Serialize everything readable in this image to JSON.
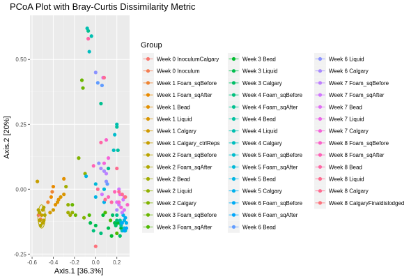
{
  "chart_data": {
    "type": "scatter",
    "title": "PCoA Plot with Bray-Curtis Dissimilarity Metric",
    "xlabel": "Axis.1   [36.3%]",
    "ylabel": "Axis.2   [20%]",
    "xlim": [
      -0.62,
      0.32
    ],
    "ylim": [
      -0.26,
      0.67
    ],
    "xticks": [
      -0.6,
      -0.4,
      -0.2,
      0.0,
      0.2
    ],
    "xtick_labels": [
      "-0.6",
      "-0.4",
      "-0.2",
      "0.0",
      "0.2"
    ],
    "yticks": [
      -0.25,
      0.0,
      0.25,
      0.5
    ],
    "ytick_labels": [
      "-0.25",
      "0.00",
      "0.25",
      "0.50"
    ],
    "panel_background": "#ebebeb",
    "grid": true,
    "legend": {
      "title": "Group",
      "placement": "right",
      "columns": 3
    },
    "ellipse": {
      "cx": -0.51,
      "cy": -0.105,
      "rx": 0.035,
      "ry": 0.045,
      "color": "#b8a400"
    },
    "series": [
      {
        "name": "Week 0 InoculumCalgary",
        "color": "#F8766D",
        "points": [
          [
            -0.54,
            -0.1
          ]
        ]
      },
      {
        "name": "Week 0 Inoculum",
        "color": "#F47E52",
        "points": [
          [
            -0.52,
            -0.115
          ]
        ]
      },
      {
        "name": "Week 1 Foam_sqBefore",
        "color": "#EF8432",
        "points": [
          [
            -0.45,
            -0.05
          ],
          [
            -0.41,
            -0.01
          ]
        ]
      },
      {
        "name": "Week 1 Foam_sqAfter",
        "color": "#E98A00",
        "points": [
          [
            -0.4,
            0.01
          ],
          [
            -0.42,
            -0.03
          ]
        ]
      },
      {
        "name": "Week 1 Bead",
        "color": "#E29000",
        "points": [
          [
            -0.38,
            -0.06
          ],
          [
            -0.35,
            -0.04
          ],
          [
            -0.3,
            0.04
          ]
        ]
      },
      {
        "name": "Week 1 Liquid",
        "color": "#D99500",
        "points": [
          [
            -0.36,
            -0.05
          ],
          [
            -0.33,
            -0.03
          ],
          [
            -0.3,
            -0.02
          ]
        ]
      },
      {
        "name": "Week 1 Calgary",
        "color": "#D09A00",
        "points": [
          [
            -0.43,
            -0.09
          ],
          [
            -0.4,
            -0.08
          ]
        ]
      },
      {
        "name": "Week 1 Calgary_ctrlReps",
        "color": "#C69F00",
        "points": [
          [
            -0.55,
            0.03
          ],
          [
            -0.51,
            -0.1
          ],
          [
            -0.525,
            -0.12
          ]
        ]
      },
      {
        "name": "Week 2 Foam_sqBefore",
        "color": "#BBA400",
        "points": [
          [
            -0.53,
            -0.09
          ],
          [
            -0.5,
            -0.08
          ],
          [
            -0.49,
            -0.12
          ],
          [
            -0.53,
            -0.12
          ],
          [
            -0.5,
            -0.13
          ]
        ]
      },
      {
        "name": "Week 2 Foam_sqAfter",
        "color": "#AFA800",
        "points": [
          [
            -0.49,
            -0.07
          ],
          [
            -0.54,
            -0.08
          ],
          [
            -0.52,
            -0.14
          ],
          [
            -0.48,
            -0.1
          ]
        ]
      },
      {
        "name": "Week 2 Bead",
        "color": "#A1AC00",
        "points": [
          [
            -0.28,
            0.01
          ],
          [
            -0.26,
            -0.09
          ],
          [
            -0.24,
            -0.1
          ]
        ]
      },
      {
        "name": "Week 2 Liquid",
        "color": "#92B000",
        "points": [
          [
            -0.26,
            -0.06
          ],
          [
            -0.22,
            -0.09
          ],
          [
            -0.1,
            0.06
          ]
        ]
      },
      {
        "name": "Week 2 Calgary",
        "color": "#81B300",
        "points": [
          [
            -0.16,
            0.12
          ],
          [
            -0.11,
            -0.11
          ]
        ]
      },
      {
        "name": "Week 3 Foam_sqBefore",
        "color": "#6BB600",
        "points": [
          [
            -0.22,
            -0.06
          ],
          [
            -0.19,
            -0.1
          ],
          [
            -0.12,
            0.39
          ],
          [
            -0.13,
            0.42
          ]
        ]
      },
      {
        "name": "Week 3 Foam_sqAfter",
        "color": "#4FB900",
        "points": [
          [
            -0.06,
            -0.1
          ],
          [
            0.09,
            -0.09
          ],
          [
            0.14,
            -0.12
          ],
          [
            0.2,
            -0.17
          ],
          [
            0.23,
            -0.13
          ]
        ]
      },
      {
        "name": "Week 3 Bead",
        "color": "#00BB2F",
        "points": [
          [
            0.07,
            -0.1
          ],
          [
            0.15,
            -0.18
          ],
          [
            0.21,
            -0.13
          ],
          [
            0.24,
            -0.15
          ]
        ]
      },
      {
        "name": "Week 3 Liquid",
        "color": "#00BD4F",
        "points": [
          [
            -0.05,
            -0.13
          ],
          [
            0.0,
            -0.14
          ],
          [
            0.12,
            -0.15
          ],
          [
            0.18,
            -0.13
          ]
        ]
      },
      {
        "name": "Week 3 Calgary",
        "color": "#00BF67",
        "points": [
          [
            0.16,
            -0.1
          ],
          [
            0.19,
            -0.14
          ],
          [
            0.23,
            -0.18
          ]
        ]
      },
      {
        "name": "Week 4 Foam_sqBefore",
        "color": "#00C07C",
        "points": [
          [
            -0.02,
            -0.16
          ],
          [
            0.05,
            -0.17
          ],
          [
            0.2,
            -0.12
          ]
        ]
      },
      {
        "name": "Week 4 Foam_sqAfter",
        "color": "#00C08F",
        "points": [
          [
            -0.07,
            0.61
          ],
          [
            0.05,
            0.33
          ],
          [
            0.12,
            0.08
          ],
          [
            0.2,
            -0.1
          ]
        ]
      },
      {
        "name": "Week 4 Bead",
        "color": "#00C1A0",
        "points": [
          [
            0.2,
            0.24
          ],
          [
            0.21,
            0.15
          ],
          [
            0.23,
            -0.12
          ]
        ]
      },
      {
        "name": "Week 4 Liquid",
        "color": "#00BFB0",
        "points": [
          [
            -0.08,
            0.62
          ],
          [
            -0.04,
            0.59
          ],
          [
            0.2,
            0.25
          ],
          [
            0.24,
            -0.14
          ]
        ]
      },
      {
        "name": "Week 4 Calgary",
        "color": "#00BEBF",
        "points": [
          [
            -0.06,
            0.53
          ],
          [
            0.17,
            0.15
          ],
          [
            0.25,
            -0.16
          ]
        ]
      },
      {
        "name": "Week 5 Foam_sqBefore",
        "color": "#00BCCC",
        "points": [
          [
            0.18,
            0.21
          ],
          [
            0.24,
            -0.13
          ],
          [
            0.28,
            -0.16
          ]
        ]
      },
      {
        "name": "Week 5 Foam_sqAfter",
        "color": "#00B9D8",
        "points": [
          [
            0.0,
            0.02
          ],
          [
            0.08,
            0.0
          ],
          [
            0.27,
            -0.15
          ]
        ]
      },
      {
        "name": "Week 5 Bead",
        "color": "#00B5E3",
        "points": [
          [
            -0.09,
            0.05
          ],
          [
            0.0,
            -0.03
          ],
          [
            0.27,
            -0.12
          ]
        ]
      },
      {
        "name": "Week 5 Calgary",
        "color": "#00B1EC",
        "points": [
          [
            0.08,
            -0.05
          ],
          [
            0.26,
            -0.1
          ],
          [
            0.29,
            -0.13
          ]
        ]
      },
      {
        "name": "Week 6 Foam_sqBefore",
        "color": "#00ACF4",
        "points": [
          [
            0.25,
            -0.13
          ],
          [
            0.28,
            -0.11
          ]
        ]
      },
      {
        "name": "Week 6 Foam_sqAfter",
        "color": "#00A6FB",
        "points": [
          [
            0.27,
            -0.16
          ],
          [
            0.29,
            -0.15
          ]
        ]
      },
      {
        "name": "Week 6 Bead",
        "color": "#619CFF",
        "points": [
          [
            0.02,
            0.41
          ],
          [
            0.06,
            0.4
          ],
          [
            0.11,
            0.02
          ]
        ]
      },
      {
        "name": "Week 6 Liquid",
        "color": "#8B93FF",
        "points": [
          [
            0.0,
            0.45
          ],
          [
            0.03,
            0.1
          ],
          [
            0.1,
            0.03
          ]
        ]
      },
      {
        "name": "Week 6 Calgary",
        "color": "#A98BFE",
        "points": [
          [
            0.05,
            0.08
          ],
          [
            0.08,
            0.07
          ],
          [
            0.2,
            -0.08
          ]
        ]
      },
      {
        "name": "Week 7 Foam_sqBefore",
        "color": "#BF80FF",
        "points": [
          [
            0.1,
            0.06
          ],
          [
            0.22,
            -0.06
          ],
          [
            0.25,
            -0.09
          ]
        ]
      },
      {
        "name": "Week 7 Foam_sqAfter",
        "color": "#D177FF",
        "points": [
          [
            0.06,
            -0.02
          ],
          [
            0.22,
            0.0
          ],
          [
            0.26,
            -0.04
          ]
        ]
      },
      {
        "name": "Week 7 Bead",
        "color": "#E06EF4",
        "points": [
          [
            0.07,
            0.43
          ],
          [
            0.2,
            -0.05
          ],
          [
            0.27,
            -0.08
          ]
        ]
      },
      {
        "name": "Week 7 Liquid",
        "color": "#EC69E8",
        "points": [
          [
            0.23,
            -0.02
          ],
          [
            0.27,
            -0.03
          ]
        ]
      },
      {
        "name": "Week 7 Calgary",
        "color": "#F564D9",
        "points": [
          [
            0.08,
            0.1
          ],
          [
            0.12,
            0.12
          ],
          [
            0.24,
            -0.07
          ]
        ]
      },
      {
        "name": "Week 8 Foam_sqBefore",
        "color": "#FC61C9",
        "points": [
          [
            0.1,
            0.19
          ],
          [
            0.22,
            -0.05
          ],
          [
            0.3,
            -0.06
          ]
        ]
      },
      {
        "name": "Week 8 Foam_sqAfter",
        "color": "#FF62B7",
        "points": [
          [
            -0.02,
            0.09
          ],
          [
            0.12,
            -0.03
          ],
          [
            0.18,
            -0.01
          ]
        ]
      },
      {
        "name": "Week 8 Bead",
        "color": "#FF66A4",
        "points": [
          [
            -0.07,
            0.58
          ],
          [
            0.05,
            0.18
          ],
          [
            0.15,
            -0.05
          ]
        ]
      },
      {
        "name": "Week 8 Liquid",
        "color": "#FF6C91",
        "points": [
          [
            0.08,
            0.43
          ],
          [
            0.2,
            0.08
          ],
          [
            0.22,
            -0.01
          ]
        ]
      },
      {
        "name": "Week 8 Calgary",
        "color": "#FF6C91",
        "points": [
          [
            0.02,
            0.0
          ],
          [
            0.09,
            -0.04
          ],
          [
            0.25,
            -0.02
          ]
        ]
      },
      {
        "name": "Week 8 CalgaryFinaldislodged",
        "color": "#FD737D",
        "points": [
          [
            0.0,
            -0.22
          ],
          [
            0.28,
            -0.03
          ]
        ]
      }
    ]
  }
}
